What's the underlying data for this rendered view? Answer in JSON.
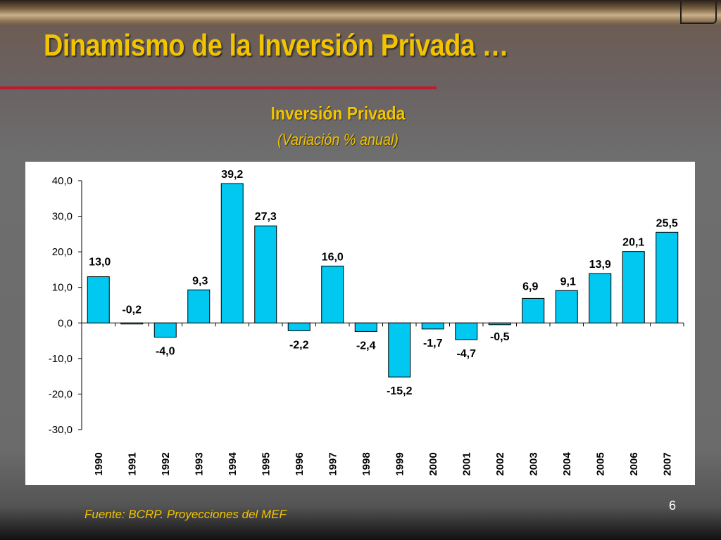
{
  "slide": {
    "title": "Dinamismo de la Inversión Privada …",
    "source": "Fuente: BCRP. Proyecciones del MEF",
    "page_number": "6"
  },
  "colors": {
    "title": "#f2c400",
    "rule": "#c0192a",
    "bar_fill": "#00c8f0",
    "bar_stroke": "#000000"
  },
  "chart_data": {
    "type": "bar",
    "title": "Inversión Privada",
    "subtitle": "(Variación % anual)",
    "xlabel": "",
    "ylabel": "",
    "ylim": [
      -30,
      40
    ],
    "yticks": [
      40,
      30,
      20,
      10,
      0,
      -10,
      -20,
      -30
    ],
    "ytick_labels": [
      "40,0",
      "30,0",
      "20,0",
      "10,0",
      "0,0",
      "-10,0",
      "-20,0",
      "-30,0"
    ],
    "grid": false,
    "legend": "none",
    "categories": [
      "1990",
      "1991",
      "1992",
      "1993",
      "1994",
      "1995",
      "1996",
      "1997",
      "1998",
      "1999",
      "2000",
      "2001",
      "2002",
      "2003",
      "2004",
      "2005",
      "2006",
      "2007"
    ],
    "values": [
      13.0,
      -0.2,
      -4.0,
      9.3,
      39.2,
      27.3,
      -2.2,
      16.0,
      -2.4,
      -15.2,
      -1.7,
      -4.7,
      -0.5,
      6.9,
      9.1,
      13.9,
      20.1,
      25.5
    ],
    "value_labels": [
      "13,0",
      "-0,2",
      "-4,0",
      "9,3",
      "39,2",
      "27,3",
      "-2,2",
      "16,0",
      "-2,4",
      "-15,2",
      "-1,7",
      "-4,7",
      "-0,5",
      "6,9",
      "9,1",
      "13,9",
      "20,1",
      "25,5"
    ]
  }
}
